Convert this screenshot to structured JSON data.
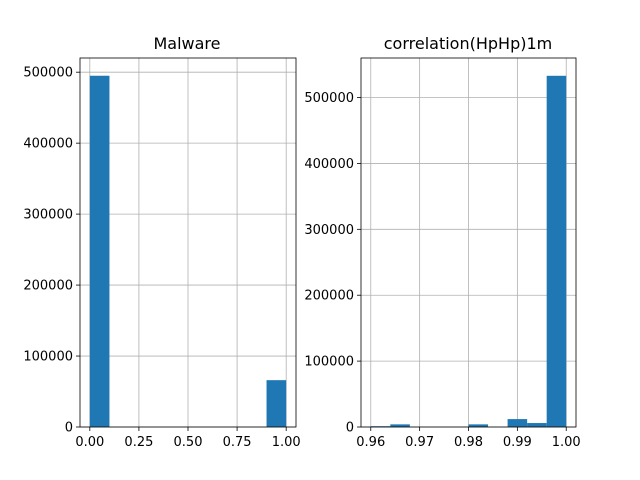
{
  "chart_data": [
    {
      "type": "bar",
      "subtype": "histogram",
      "title": "Malware",
      "xlabel": "",
      "ylabel": "",
      "bins": [
        {
          "x0": 0.0,
          "x1": 0.1,
          "count": 495000
        },
        {
          "x0": 0.1,
          "x1": 0.2,
          "count": 0
        },
        {
          "x0": 0.2,
          "x1": 0.3,
          "count": 0
        },
        {
          "x0": 0.3,
          "x1": 0.4,
          "count": 0
        },
        {
          "x0": 0.4,
          "x1": 0.5,
          "count": 0
        },
        {
          "x0": 0.5,
          "x1": 0.6,
          "count": 0
        },
        {
          "x0": 0.6,
          "x1": 0.7,
          "count": 0
        },
        {
          "x0": 0.7,
          "x1": 0.8,
          "count": 0
        },
        {
          "x0": 0.8,
          "x1": 0.9,
          "count": 0
        },
        {
          "x0": 0.9,
          "x1": 1.0,
          "count": 66000
        }
      ],
      "xlim": [
        -0.05,
        1.05
      ],
      "ylim": [
        0,
        520000
      ],
      "xticks": [
        0.0,
        0.25,
        0.5,
        0.75,
        1.0
      ],
      "xtick_labels": [
        "0.00",
        "0.25",
        "0.50",
        "0.75",
        "1.00"
      ],
      "yticks": [
        0,
        100000,
        200000,
        300000,
        400000,
        500000
      ],
      "ytick_labels": [
        "0",
        "100000",
        "200000",
        "300000",
        "400000",
        "500000"
      ],
      "grid": true,
      "bar_color": "#1f77b4"
    },
    {
      "type": "bar",
      "subtype": "histogram",
      "title": "correlation(HpHp)1m",
      "xlabel": "",
      "ylabel": "",
      "bins": [
        {
          "x0": 0.96,
          "x1": 0.964,
          "count": 1200
        },
        {
          "x0": 0.964,
          "x1": 0.968,
          "count": 4000
        },
        {
          "x0": 0.968,
          "x1": 0.972,
          "count": 0
        },
        {
          "x0": 0.972,
          "x1": 0.976,
          "count": 0
        },
        {
          "x0": 0.976,
          "x1": 0.98,
          "count": 0
        },
        {
          "x0": 0.98,
          "x1": 0.984,
          "count": 4000
        },
        {
          "x0": 0.984,
          "x1": 0.988,
          "count": 0
        },
        {
          "x0": 0.988,
          "x1": 0.992,
          "count": 12000
        },
        {
          "x0": 0.992,
          "x1": 0.996,
          "count": 6000
        },
        {
          "x0": 0.996,
          "x1": 1.0,
          "count": 533000
        }
      ],
      "xlim": [
        0.958,
        1.002
      ],
      "ylim": [
        0,
        560000
      ],
      "xticks": [
        0.96,
        0.97,
        0.98,
        0.99,
        1.0
      ],
      "xtick_labels": [
        "0.96",
        "0.97",
        "0.98",
        "0.99",
        "1.00"
      ],
      "yticks": [
        0,
        100000,
        200000,
        300000,
        400000,
        500000
      ],
      "ytick_labels": [
        "0",
        "100000",
        "200000",
        "300000",
        "400000",
        "500000"
      ],
      "grid": true,
      "bar_color": "#1f77b4"
    }
  ]
}
